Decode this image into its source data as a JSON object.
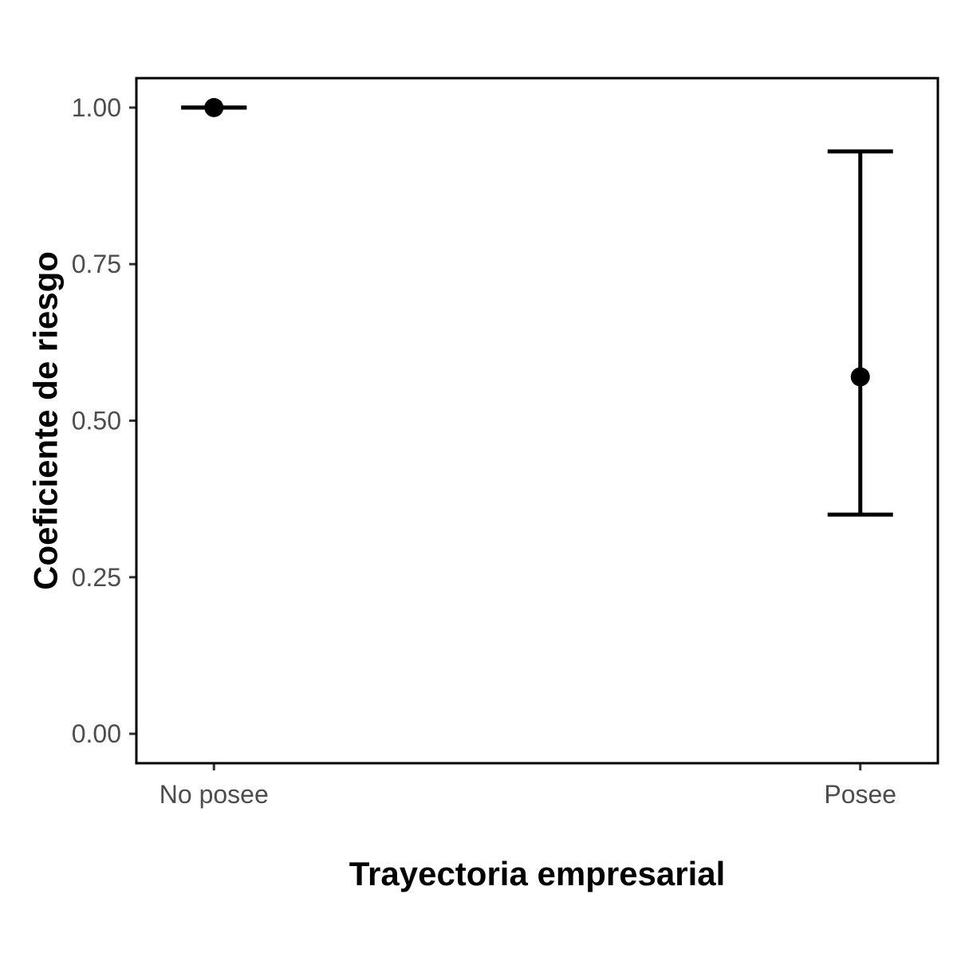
{
  "chart_data": {
    "type": "scatter",
    "subtype": "point-with-error-bars",
    "title": "",
    "xlabel": "Trayectoria empresarial",
    "ylabel": "Coeficiente de riesgo",
    "categories": [
      "No posee",
      "Posee"
    ],
    "points": [
      {
        "category": "No posee",
        "estimate": 1.0,
        "lower": 1.0,
        "upper": 1.0
      },
      {
        "category": "Posee",
        "estimate": 0.57,
        "lower": 0.35,
        "upper": 0.93
      }
    ],
    "ylim": [
      -0.047,
      1.047
    ],
    "yticks": [
      0.0,
      0.25,
      0.5,
      0.75,
      1.0
    ],
    "ytick_labels": [
      "0.00",
      "0.25",
      "0.50",
      "0.75",
      "1.00"
    ],
    "grid": false,
    "legend": "none",
    "colors": {
      "marks": "#000000",
      "tick_text": "#4d4d4d",
      "panel_border": "#000000"
    }
  }
}
